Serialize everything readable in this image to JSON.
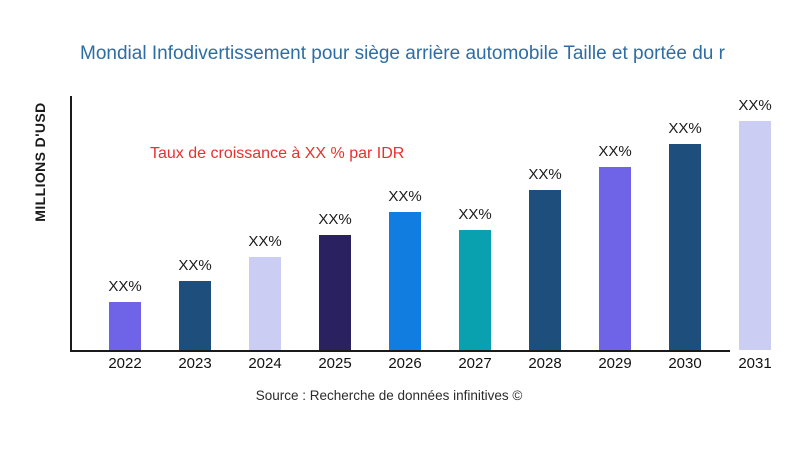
{
  "page": {
    "background": "#ffffff"
  },
  "chart_data": {
    "type": "bar",
    "title": "Mondial Infodivertissement pour siège arrière automobile Taille et portée du r",
    "title_color": "#2E6DA4",
    "ylabel": "MILLIONS D'USD",
    "xlabel": "",
    "annotation": {
      "text": "Taux de croissance à XX % par IDR",
      "color": "#E8302C"
    },
    "source": "Source : Recherche de données infinitives ©",
    "categories": [
      "2022",
      "2023",
      "2024",
      "2025",
      "2026",
      "2027",
      "2028",
      "2029",
      "2030",
      "2031"
    ],
    "values": [
      48,
      69,
      93,
      115,
      138,
      120,
      160,
      183,
      206,
      229
    ],
    "values_unit": "relative bar heights (no numeric y-axis ticks shown; bars labeled XX%)",
    "bar_labels": [
      "XX%",
      "XX%",
      "XX%",
      "XX%",
      "XX%",
      "XX%",
      "XX%",
      "XX%",
      "XX%",
      "XX%"
    ],
    "bar_colors": [
      "#6F63E8",
      "#1E4E7C",
      "#CBCDF2",
      "#2A2260",
      "#117DE1",
      "#09A0B0",
      "#1E4E7C",
      "#6F63E8",
      "#1E4E7C",
      "#CBCDF2"
    ],
    "axis_color": "#1a1a1a",
    "grid": "off",
    "legend": "none"
  }
}
